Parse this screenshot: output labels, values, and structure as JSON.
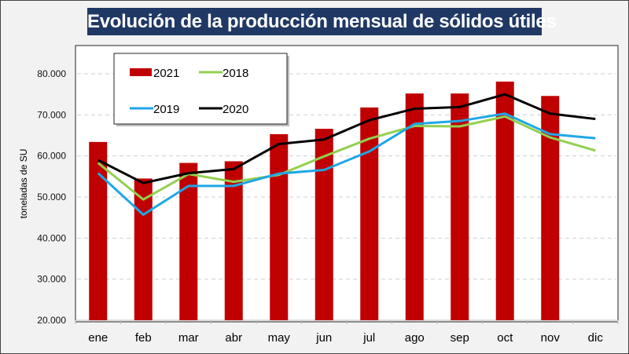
{
  "chart_data": {
    "type": "bar",
    "title": "Evolución de la producción mensual de sólidos útiles",
    "xlabel": "",
    "ylabel": "toneladas de SU",
    "ylim": [
      20000,
      85000
    ],
    "yticks": [
      20000,
      30000,
      40000,
      50000,
      60000,
      70000,
      80000
    ],
    "ytick_labels": [
      "20.000",
      "30.000",
      "40.000",
      "50.000",
      "60.000",
      "70.000",
      "80.000"
    ],
    "grid": true,
    "legend_position": "top-left",
    "categories": [
      "ene",
      "feb",
      "mar",
      "abr",
      "may",
      "jun",
      "jul",
      "ago",
      "sep",
      "oct",
      "nov",
      "dic"
    ],
    "series": [
      {
        "name": "2021",
        "kind": "bar",
        "color": "#c00000",
        "values": [
          63400,
          54500,
          58300,
          58700,
          65300,
          66600,
          71800,
          75200,
          75200,
          78100,
          74600,
          null
        ]
      },
      {
        "name": "2018",
        "kind": "line",
        "color": "#92d050",
        "values": [
          58300,
          49400,
          55600,
          53700,
          55400,
          59900,
          64200,
          67300,
          67200,
          69600,
          64500,
          61300
        ]
      },
      {
        "name": "2019",
        "kind": "line",
        "color": "#1ea7e6",
        "values": [
          55800,
          45700,
          52700,
          52700,
          55700,
          56600,
          61100,
          67800,
          68500,
          70300,
          65300,
          64300
        ]
      },
      {
        "name": "2020",
        "kind": "line",
        "color": "#000000",
        "values": [
          59000,
          53400,
          55800,
          56800,
          62900,
          64000,
          68700,
          71500,
          71900,
          75000,
          70300,
          69000
        ]
      }
    ],
    "legend": [
      "2021",
      "2018",
      "2019",
      "2020"
    ]
  }
}
